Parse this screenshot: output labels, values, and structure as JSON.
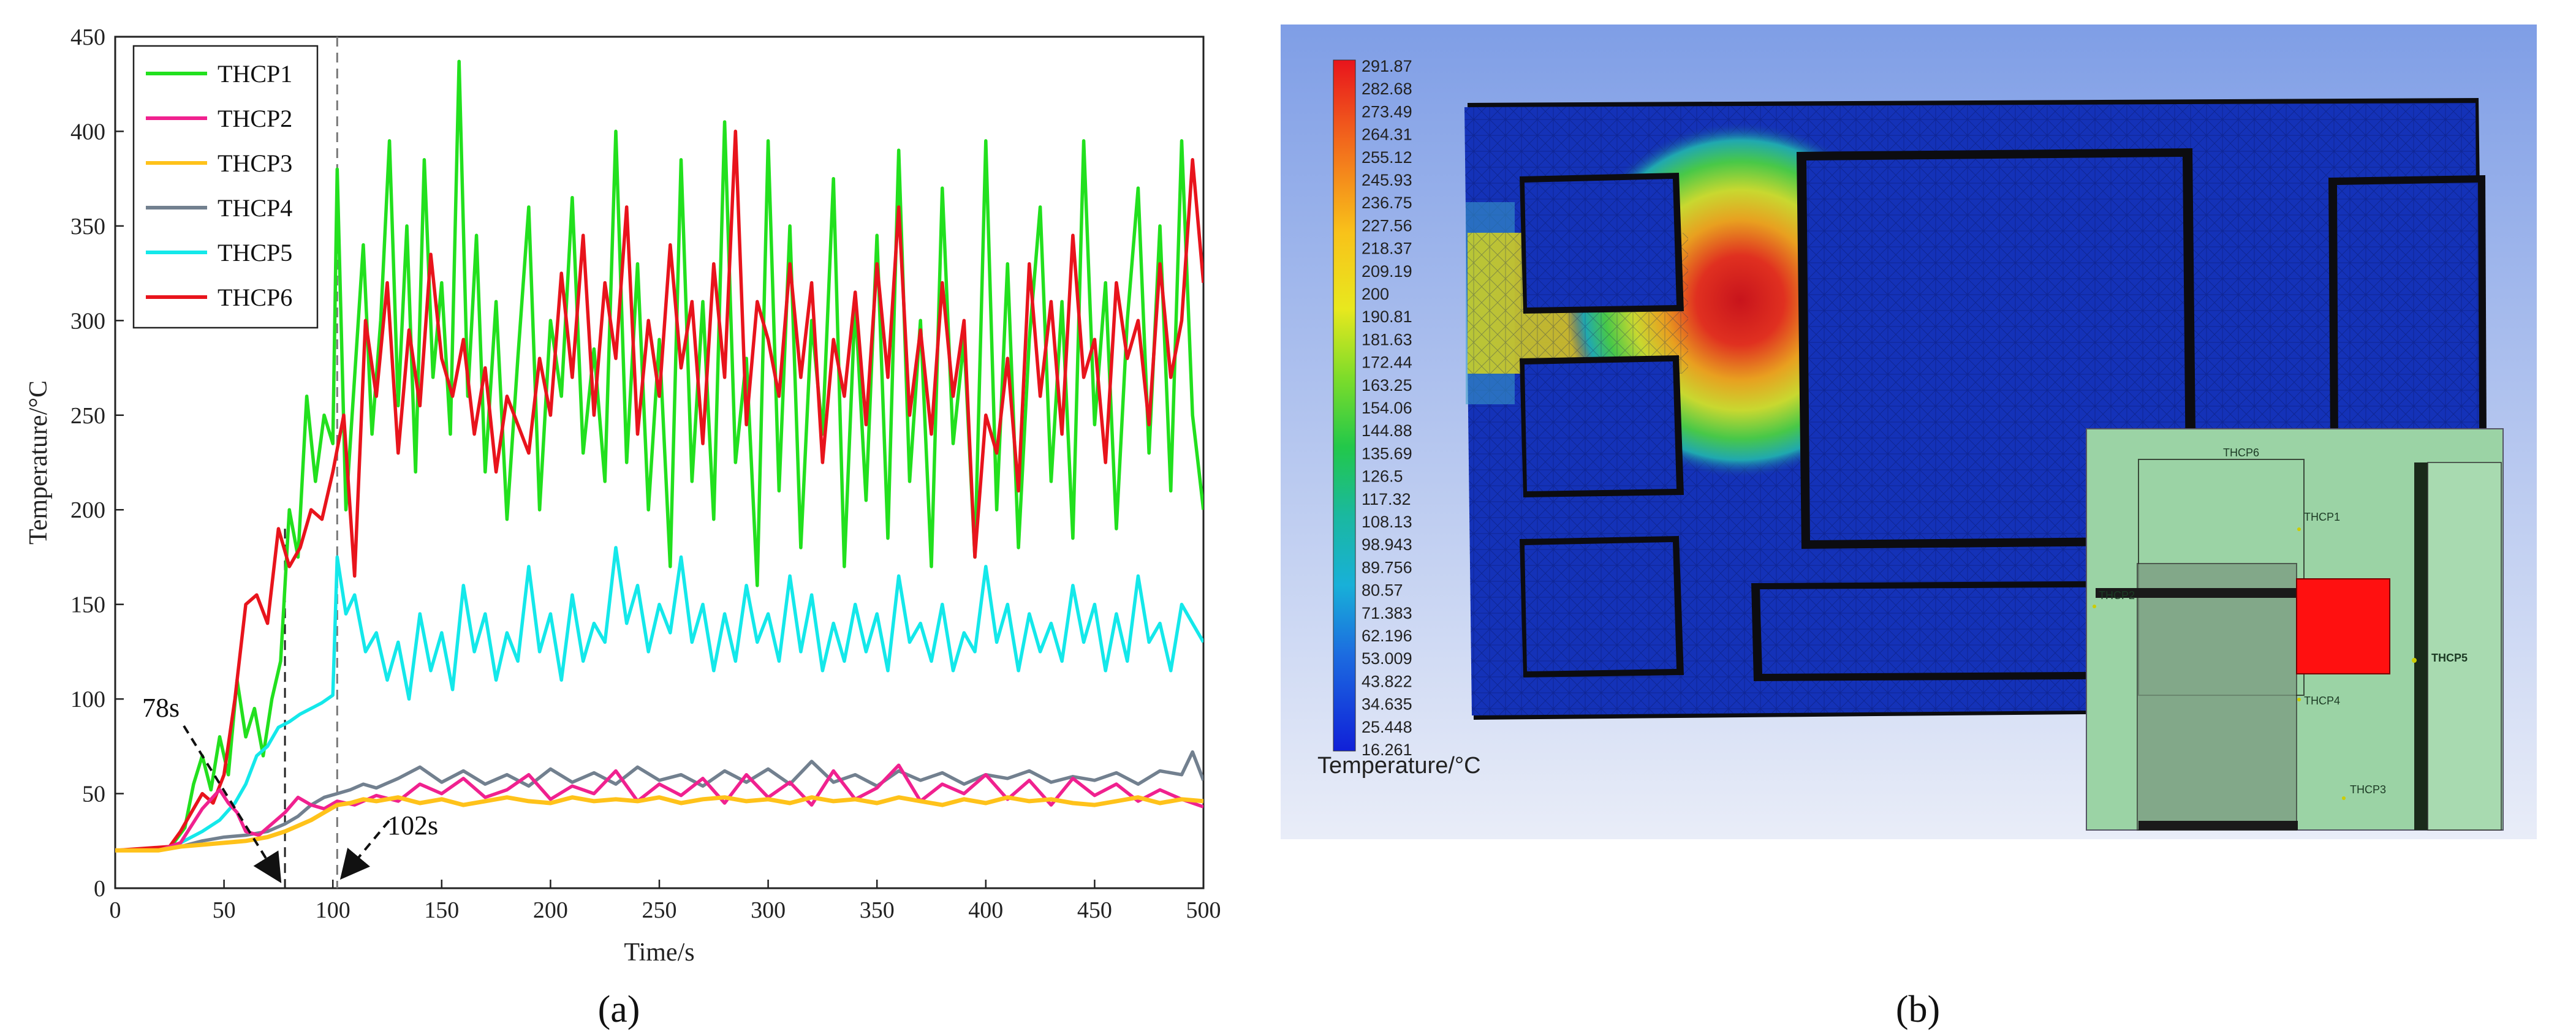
{
  "panel_a": {
    "caption": "(a)",
    "annotations": [
      "78s",
      "102s"
    ],
    "legend": [
      "THCP1",
      "THCP2",
      "THCP3",
      "THCP4",
      "THCP5",
      "THCP6"
    ]
  },
  "panel_b": {
    "caption": "(b)",
    "colorbar_title": "Temperature/°C",
    "colorbar_ticks": [
      "291.87",
      "282.68",
      "273.49",
      "264.31",
      "255.12",
      "245.93",
      "236.75",
      "227.56",
      "218.37",
      "209.19",
      "200",
      "190.81",
      "181.63",
      "172.44",
      "163.25",
      "154.06",
      "144.88",
      "135.69",
      "126.5",
      "117.32",
      "108.13",
      "98.943",
      "89.756",
      "80.57",
      "71.383",
      "62.196",
      "53.009",
      "43.822",
      "34.635",
      "25.448",
      "16.261"
    ],
    "inset_labels": [
      "THCP6",
      "THCP1",
      "THCP2",
      "THCP4",
      "THCP5",
      "THCP3"
    ]
  },
  "colors": {
    "THCP1": "#22e01e",
    "THCP2": "#f0218f",
    "THCP3": "#ffc21a",
    "THCP4": "#72808f",
    "THCP5": "#14e8ea",
    "THCP6": "#e8141c",
    "inset_bg": "#9bd3a5",
    "inset_target": "#ff1010"
  },
  "chart_data": {
    "type": "line",
    "xlabel": "Time/s",
    "ylabel": "Temperature/°C",
    "xlim": [
      0,
      500
    ],
    "ylim": [
      0,
      450
    ],
    "xticks": [
      0,
      50,
      100,
      150,
      200,
      250,
      300,
      350,
      400,
      450,
      500
    ],
    "yticks": [
      0,
      50,
      100,
      150,
      200,
      250,
      300,
      350,
      400,
      450
    ],
    "grid": false,
    "legend_position": "top-left",
    "vertical_markers": [
      78,
      102
    ],
    "series": [
      {
        "name": "THCP1",
        "x": [
          0,
          25,
          32,
          36,
          40,
          44,
          48,
          52,
          56,
          60,
          64,
          68,
          72,
          76,
          80,
          84,
          88,
          92,
          96,
          100,
          102,
          106,
          110,
          114,
          118,
          122,
          126,
          130,
          134,
          138,
          142,
          146,
          150,
          154,
          158,
          162,
          166,
          170,
          175,
          180,
          185,
          190,
          195,
          200,
          205,
          210,
          215,
          220,
          225,
          230,
          235,
          240,
          245,
          250,
          255,
          260,
          265,
          270,
          275,
          280,
          285,
          290,
          295,
          300,
          305,
          310,
          315,
          320,
          325,
          330,
          335,
          340,
          345,
          350,
          355,
          360,
          365,
          370,
          375,
          380,
          385,
          390,
          395,
          400,
          405,
          410,
          415,
          420,
          425,
          430,
          435,
          440,
          445,
          450,
          455,
          460,
          465,
          470,
          475,
          480,
          485,
          490,
          495,
          500
        ],
        "y": [
          20,
          21,
          32,
          55,
          70,
          52,
          80,
          60,
          110,
          80,
          95,
          70,
          100,
          120,
          200,
          175,
          260,
          215,
          250,
          235,
          380,
          200,
          270,
          340,
          240,
          300,
          395,
          255,
          350,
          220,
          385,
          270,
          320,
          240,
          437,
          260,
          345,
          220,
          310,
          195,
          280,
          360,
          200,
          300,
          260,
          365,
          230,
          285,
          215,
          400,
          225,
          330,
          200,
          290,
          170,
          385,
          215,
          310,
          195,
          405,
          225,
          280,
          160,
          395,
          210,
          350,
          180,
          300,
          240,
          375,
          170,
          310,
          205,
          345,
          185,
          390,
          215,
          300,
          170,
          370,
          235,
          290,
          175,
          395,
          200,
          330,
          180,
          290,
          360,
          215,
          310,
          185,
          395,
          245,
          320,
          190,
          300,
          370,
          230,
          350,
          210,
          395,
          250,
          200
        ]
      },
      {
        "name": "THCP2",
        "x": [
          0,
          20,
          30,
          40,
          48,
          52,
          56,
          60,
          66,
          72,
          78,
          84,
          90,
          96,
          102,
          110,
          120,
          130,
          140,
          150,
          160,
          170,
          180,
          190,
          200,
          210,
          220,
          230,
          240,
          250,
          260,
          270,
          280,
          290,
          300,
          310,
          320,
          330,
          340,
          350,
          360,
          370,
          380,
          390,
          400,
          410,
          420,
          430,
          440,
          450,
          460,
          470,
          480,
          490,
          500
        ],
        "y": [
          20,
          20,
          24,
          42,
          52,
          45,
          40,
          30,
          28,
          34,
          40,
          48,
          44,
          42,
          46,
          44,
          49,
          46,
          55,
          50,
          58,
          48,
          52,
          60,
          47,
          54,
          50,
          62,
          46,
          55,
          49,
          58,
          45,
          60,
          48,
          56,
          44,
          62,
          47,
          53,
          65,
          46,
          55,
          50,
          60,
          47,
          57,
          44,
          58,
          49,
          55,
          46,
          52,
          47,
          43
        ]
      },
      {
        "name": "THCP3",
        "x": [
          0,
          20,
          30,
          40,
          50,
          60,
          70,
          78,
          84,
          90,
          96,
          102,
          108,
          114,
          120,
          130,
          140,
          150,
          160,
          170,
          180,
          190,
          200,
          210,
          220,
          230,
          240,
          250,
          260,
          270,
          280,
          290,
          300,
          310,
          320,
          330,
          340,
          350,
          360,
          370,
          380,
          390,
          400,
          410,
          420,
          430,
          440,
          450,
          460,
          470,
          480,
          490,
          500
        ],
        "y": [
          20,
          20,
          22,
          23,
          24,
          25,
          27,
          30,
          33,
          36,
          40,
          44,
          45,
          47,
          46,
          48,
          45,
          47,
          44,
          46,
          48,
          46,
          45,
          48,
          46,
          47,
          46,
          48,
          45,
          47,
          48,
          46,
          47,
          45,
          48,
          46,
          47,
          45,
          48,
          46,
          44,
          47,
          45,
          48,
          46,
          47,
          45,
          44,
          46,
          48,
          45,
          47,
          46
        ]
      },
      {
        "name": "THCP4",
        "x": [
          0,
          20,
          30,
          40,
          50,
          60,
          70,
          78,
          84,
          90,
          96,
          102,
          108,
          114,
          120,
          130,
          140,
          150,
          160,
          170,
          180,
          190,
          200,
          210,
          220,
          230,
          240,
          250,
          260,
          270,
          280,
          290,
          300,
          310,
          320,
          330,
          340,
          350,
          360,
          370,
          380,
          390,
          400,
          410,
          420,
          430,
          440,
          450,
          460,
          470,
          480,
          490,
          495,
          500
        ],
        "y": [
          20,
          20,
          22,
          25,
          27,
          28,
          30,
          34,
          38,
          44,
          48,
          50,
          52,
          55,
          53,
          58,
          64,
          56,
          62,
          55,
          60,
          54,
          63,
          56,
          61,
          55,
          64,
          57,
          60,
          54,
          62,
          56,
          63,
          55,
          67,
          56,
          60,
          54,
          62,
          57,
          61,
          55,
          60,
          58,
          62,
          56,
          59,
          57,
          61,
          55,
          62,
          60,
          72,
          57
        ]
      },
      {
        "name": "THCP5",
        "x": [
          0,
          25,
          30,
          40,
          48,
          55,
          60,
          65,
          70,
          75,
          80,
          85,
          90,
          95,
          100,
          102,
          106,
          110,
          115,
          120,
          125,
          130,
          135,
          140,
          145,
          150,
          155,
          160,
          165,
          170,
          175,
          180,
          185,
          190,
          195,
          200,
          205,
          210,
          215,
          220,
          225,
          230,
          235,
          240,
          245,
          250,
          255,
          260,
          265,
          270,
          275,
          280,
          285,
          290,
          295,
          300,
          305,
          310,
          315,
          320,
          325,
          330,
          335,
          340,
          345,
          350,
          355,
          360,
          365,
          370,
          375,
          380,
          385,
          390,
          395,
          400,
          405,
          410,
          415,
          420,
          425,
          430,
          435,
          440,
          445,
          450,
          455,
          460,
          465,
          470,
          475,
          480,
          485,
          490,
          495,
          500
        ],
        "y": [
          20,
          21,
          24,
          30,
          36,
          45,
          55,
          70,
          75,
          85,
          88,
          92,
          95,
          98,
          102,
          175,
          145,
          155,
          125,
          135,
          110,
          130,
          100,
          145,
          115,
          135,
          105,
          160,
          125,
          145,
          110,
          135,
          120,
          170,
          125,
          145,
          110,
          155,
          120,
          140,
          130,
          180,
          140,
          160,
          125,
          150,
          135,
          175,
          130,
          150,
          115,
          145,
          120,
          160,
          130,
          145,
          120,
          165,
          125,
          155,
          115,
          140,
          120,
          150,
          125,
          145,
          115,
          165,
          130,
          140,
          120,
          150,
          115,
          135,
          125,
          170,
          130,
          150,
          115,
          145,
          125,
          140,
          120,
          160,
          130,
          150,
          115,
          145,
          120,
          165,
          130,
          140,
          115,
          150,
          140,
          130
        ]
      },
      {
        "name": "THCP6",
        "x": [
          0,
          25,
          30,
          35,
          40,
          45,
          50,
          55,
          60,
          65,
          70,
          75,
          80,
          85,
          90,
          95,
          100,
          105,
          110,
          115,
          120,
          125,
          130,
          135,
          140,
          145,
          150,
          155,
          160,
          165,
          170,
          175,
          180,
          185,
          190,
          195,
          200,
          205,
          210,
          215,
          220,
          225,
          230,
          235,
          240,
          245,
          250,
          255,
          260,
          265,
          270,
          275,
          280,
          285,
          290,
          295,
          300,
          305,
          310,
          315,
          320,
          325,
          330,
          335,
          340,
          345,
          350,
          355,
          360,
          365,
          370,
          375,
          380,
          385,
          390,
          395,
          400,
          405,
          410,
          415,
          420,
          425,
          430,
          435,
          440,
          445,
          450,
          455,
          460,
          465,
          470,
          475,
          480,
          485,
          490,
          495,
          500
        ],
        "y": [
          20,
          22,
          30,
          40,
          50,
          45,
          60,
          100,
          150,
          155,
          140,
          190,
          170,
          180,
          200,
          195,
          220,
          250,
          165,
          300,
          260,
          320,
          230,
          295,
          255,
          335,
          280,
          260,
          290,
          240,
          275,
          220,
          260,
          245,
          230,
          280,
          250,
          325,
          270,
          345,
          250,
          320,
          280,
          360,
          240,
          300,
          260,
          340,
          275,
          310,
          235,
          330,
          270,
          400,
          245,
          310,
          290,
          260,
          330,
          270,
          320,
          225,
          290,
          260,
          315,
          245,
          330,
          270,
          360,
          250,
          295,
          240,
          320,
          260,
          300,
          175,
          250,
          230,
          280,
          210,
          330,
          260,
          310,
          240,
          345,
          270,
          290,
          225,
          320,
          280,
          300,
          245,
          330,
          270,
          300,
          385,
          320
        ]
      }
    ]
  }
}
